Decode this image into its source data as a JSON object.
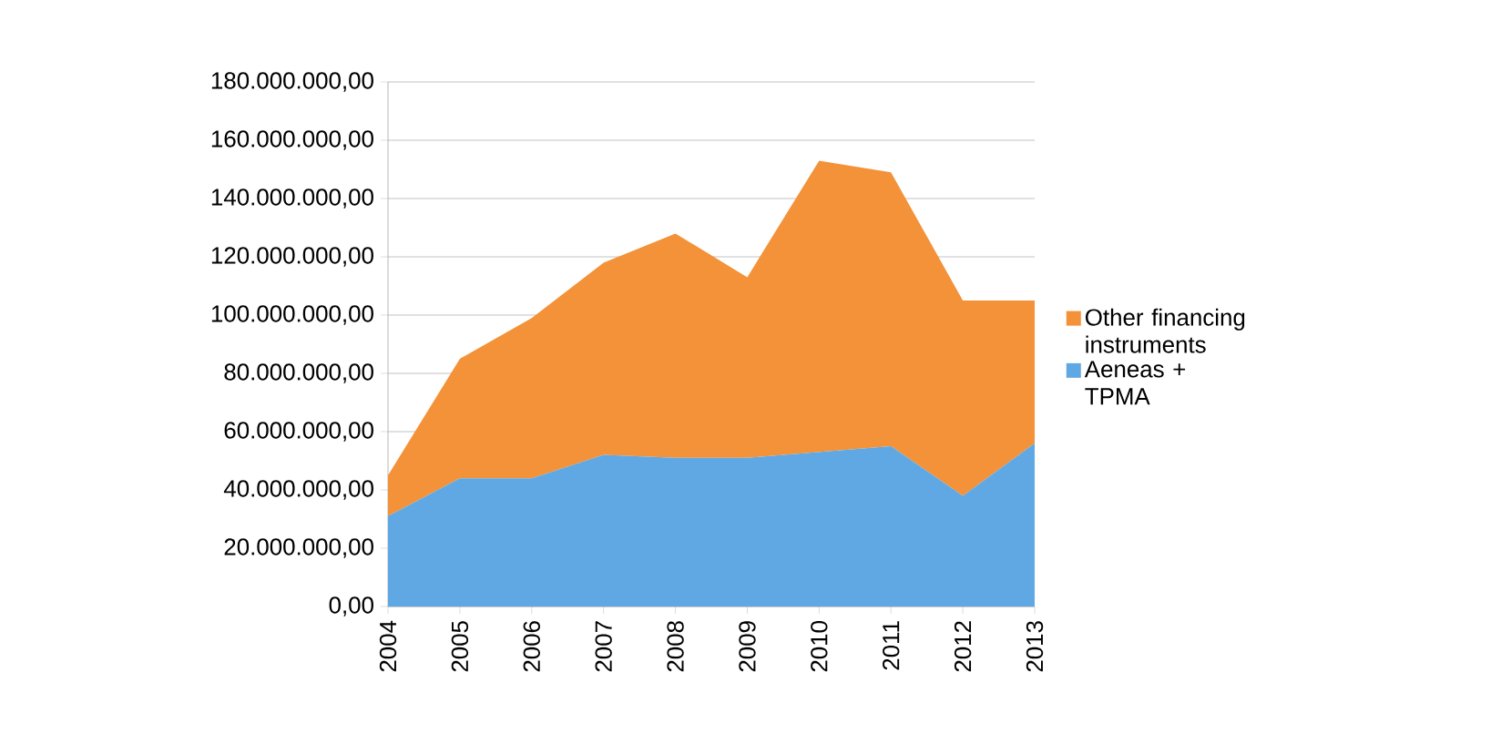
{
  "chart_data": {
    "type": "area",
    "stacked": true,
    "categories": [
      "2004",
      "2005",
      "2006",
      "2007",
      "2008",
      "2009",
      "2010",
      "2011",
      "2012",
      "2013"
    ],
    "series": [
      {
        "name": "Aeneas + TPMA",
        "color": "#5fa8e4",
        "values": [
          31000000,
          44000000,
          44000000,
          52000000,
          51000000,
          51000000,
          53000000,
          55000000,
          38000000,
          56000000
        ]
      },
      {
        "name": "Other financing instruments",
        "color": "#f39238",
        "values": [
          14000000,
          41000000,
          55000000,
          66000000,
          77000000,
          62000000,
          100000000,
          94000000,
          67000000,
          49000000
        ]
      }
    ],
    "ylim": [
      0,
      180000000
    ],
    "yticks": [
      {
        "value": 0,
        "label": "0,00"
      },
      {
        "value": 20000000,
        "label": "20.000.000,00"
      },
      {
        "value": 40000000,
        "label": "40.000.000,00"
      },
      {
        "value": 60000000,
        "label": "60.000.000,00"
      },
      {
        "value": 80000000,
        "label": "80.000.000,00"
      },
      {
        "value": 100000000,
        "label": "100.000.000,00"
      },
      {
        "value": 120000000,
        "label": "120.000.000,00"
      },
      {
        "value": 140000000,
        "label": "140.000.000,00"
      },
      {
        "value": 160000000,
        "label": "160.000.000,00"
      },
      {
        "value": 180000000,
        "label": "180.000.000,00"
      }
    ],
    "grid": "y",
    "legend": "right"
  }
}
